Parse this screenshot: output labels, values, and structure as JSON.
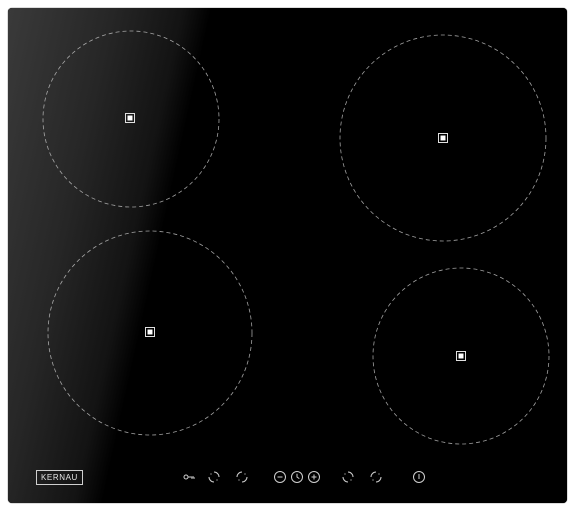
{
  "appliance": {
    "type": "induction-hob",
    "brand": "KERNAU",
    "glass_color": "#000000",
    "print_color": "#cfcfcf",
    "zones": [
      {
        "id": "rear-left",
        "indicator": "square-indicator-icon"
      },
      {
        "id": "front-left",
        "indicator": "square-indicator-icon"
      },
      {
        "id": "rear-right",
        "indicator": "square-indicator-icon"
      },
      {
        "id": "front-right",
        "indicator": "square-indicator-icon"
      }
    ],
    "controls": [
      {
        "id": "child-lock",
        "icon": "key-icon"
      },
      {
        "id": "zone-selector-front-left",
        "icon": "zone-selector-icon"
      },
      {
        "id": "zone-selector-rear-left",
        "icon": "zone-selector-icon"
      },
      {
        "id": "minus",
        "icon": "minus-icon"
      },
      {
        "id": "timer",
        "icon": "clock-icon"
      },
      {
        "id": "plus",
        "icon": "plus-icon"
      },
      {
        "id": "zone-selector-rear-right",
        "icon": "zone-selector-icon"
      },
      {
        "id": "zone-selector-front-right",
        "icon": "zone-selector-icon"
      },
      {
        "id": "power",
        "icon": "power-icon"
      }
    ]
  }
}
